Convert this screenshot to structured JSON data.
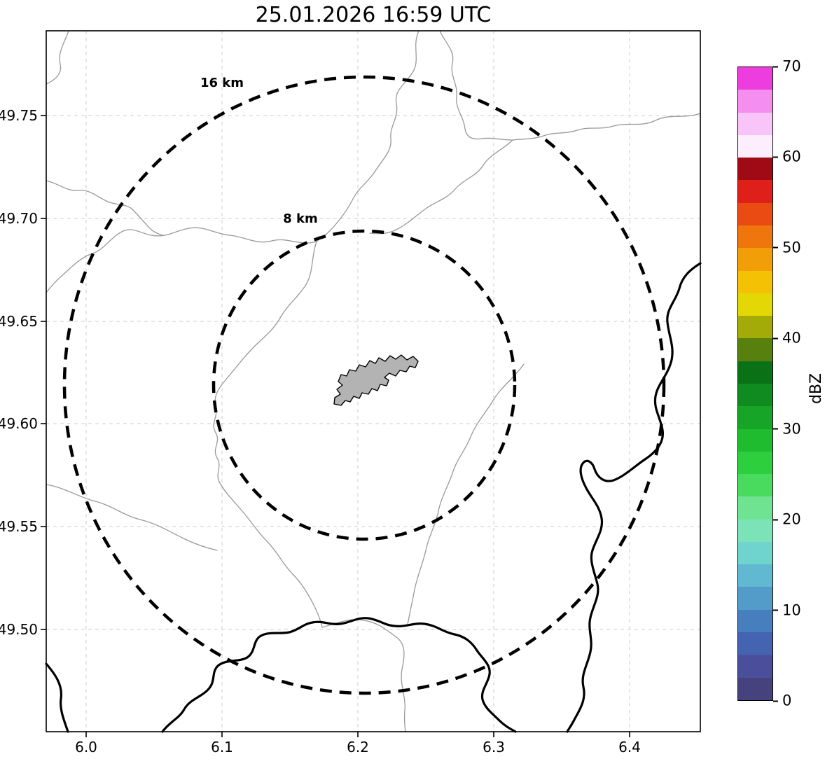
{
  "title": "25.01.2026 16:59 UTC",
  "map": {
    "x_tick_labels": [
      "6.0",
      "6.1",
      "6.2",
      "6.3",
      "6.4"
    ],
    "y_tick_labels": [
      "49.75",
      "49.70",
      "49.65",
      "49.60",
      "49.55",
      "49.50"
    ],
    "ring_labels": {
      "outer": "16 km",
      "inner": "8 km"
    }
  },
  "colorbar": {
    "label": "dBZ",
    "tick_labels_top_to_bottom": [
      "70",
      "60",
      "50",
      "40",
      "30",
      "20",
      "10",
      "0"
    ],
    "colors_bottom_to_top": [
      "#45427e",
      "#4b4f9b",
      "#4463b0",
      "#477ebe",
      "#539bc8",
      "#60b9d1",
      "#6fd3ce",
      "#7ce2b8",
      "#70e392",
      "#49db5d",
      "#2dcf3e",
      "#1fbc30",
      "#17a527",
      "#108b1f",
      "#0b7117",
      "#57800e",
      "#a3ab09",
      "#e3d705",
      "#f5c105",
      "#f29e08",
      "#ee760d",
      "#e94b12",
      "#df1f1a",
      "#9e0b14",
      "#fdeefe",
      "#f9c4f8",
      "#f48ff0",
      "#ee3ddf"
    ]
  },
  "chart_data": {
    "type": "heatmap",
    "title": "25.01.2026 16:59 UTC",
    "xlabel": "",
    "ylabel": "",
    "x_axis": {
      "ticks": [
        6.0,
        6.1,
        6.2,
        6.3,
        6.4
      ],
      "range": [
        5.971,
        6.452
      ]
    },
    "y_axis": {
      "ticks": [
        49.5,
        49.55,
        49.6,
        49.65,
        49.7,
        49.75
      ],
      "range": [
        49.45,
        49.791
      ]
    },
    "colorbar": {
      "label": "dBZ",
      "range": [
        0,
        70
      ],
      "ticks": [
        0,
        10,
        20,
        30,
        40,
        50,
        60,
        70
      ]
    },
    "reflectivity_echoes": [],
    "range_rings": [
      {
        "radius_km": 8,
        "label": "8 km"
      },
      {
        "radius_km": 16,
        "label": "16 km"
      }
    ],
    "ring_center_lonlat": [
      6.205,
      49.619
    ],
    "grid": true,
    "legend_position": "none"
  }
}
